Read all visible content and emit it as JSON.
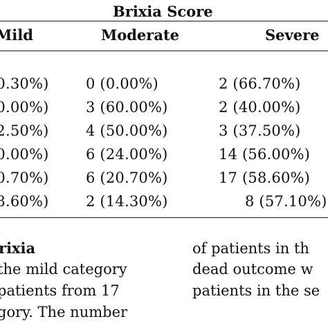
{
  "table": {
    "group_header": "Brixia Score",
    "columns": [
      "Mild",
      "Moderate",
      "Severe"
    ],
    "rows": [
      [
        "(0.30%)",
        "0 (0.00%)",
        "2 (66.70%)"
      ],
      [
        "(0.00%)",
        "3 (60.00%)",
        "2 (40.00%)"
      ],
      [
        "(2.50%)",
        "4 (50.00%)",
        "3 (37.50%)"
      ],
      [
        "(0.00%)",
        "6 (24.00%)",
        "14 (56.00%)"
      ],
      [
        "(0.70%)",
        "6 (20.70%)",
        "17 (58.60%)"
      ],
      [
        "(8.60%)",
        "2 (14.30%)",
        "8 (57.10%)"
      ]
    ]
  },
  "text_left": {
    "heading": "rixia",
    "lines": [
      "the mild category",
      "patients from 17",
      "gory. The number"
    ]
  },
  "text_right": {
    "lines": [
      "of patients in th",
      "dead outcome w",
      "patients in the se"
    ]
  }
}
